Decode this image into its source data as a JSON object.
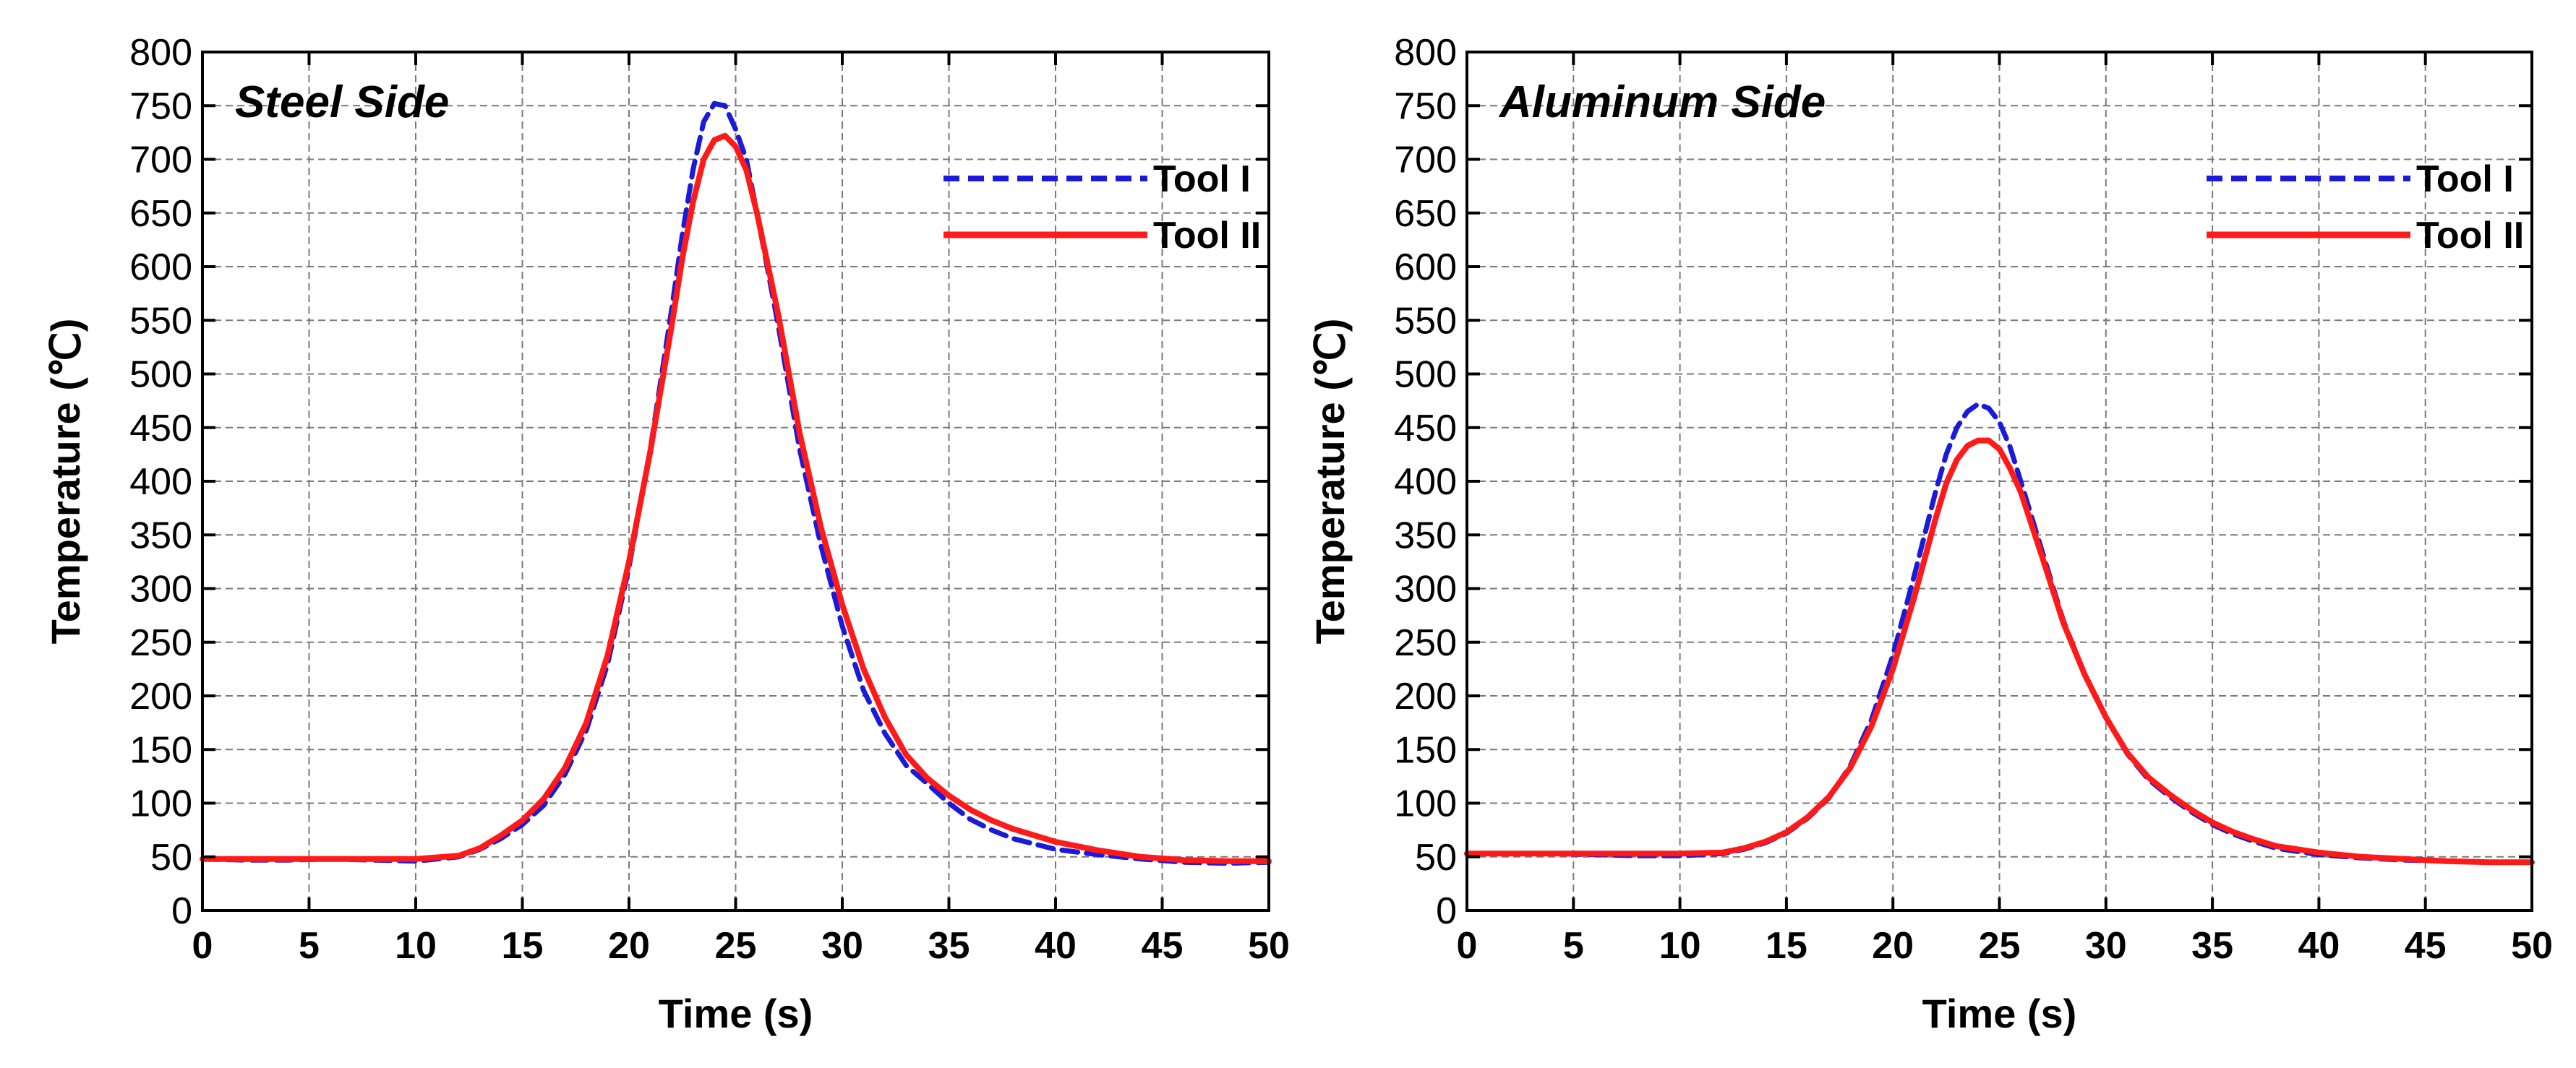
{
  "chart_data": [
    {
      "type": "line",
      "title": "Steel Side",
      "xlabel": "Time (s)",
      "ylabel": "Temperature (℃)",
      "xlim": [
        0,
        50
      ],
      "ylim": [
        0,
        800
      ],
      "xticks": [
        0,
        5,
        10,
        15,
        20,
        25,
        30,
        35,
        40,
        45,
        50
      ],
      "yticks": [
        0,
        50,
        100,
        150,
        200,
        250,
        300,
        350,
        400,
        450,
        500,
        550,
        600,
        650,
        700,
        750,
        800
      ],
      "grid": true,
      "legend_position": "top-right",
      "series": [
        {
          "name": "Tool I",
          "color": "#1a1adb",
          "style": "dashed",
          "x": [
            0,
            2,
            4,
            6,
            8,
            10,
            12,
            13,
            14,
            15,
            16,
            17,
            18,
            19,
            20,
            21,
            22,
            22.5,
            23,
            23.5,
            24,
            24.5,
            25,
            25.5,
            26,
            27,
            28,
            29,
            30,
            31,
            32,
            33,
            34,
            35,
            36,
            37,
            38,
            40,
            42,
            44,
            46,
            48,
            50
          ],
          "y": [
            48,
            47,
            47,
            48,
            47,
            46,
            50,
            57,
            67,
            80,
            98,
            127,
            168,
            230,
            320,
            430,
            560,
            630,
            690,
            735,
            752,
            750,
            728,
            700,
            650,
            545,
            430,
            340,
            265,
            205,
            165,
            135,
            118,
            100,
            85,
            75,
            67,
            57,
            52,
            48,
            45,
            44,
            45
          ]
        },
        {
          "name": "Tool II",
          "color": "#ff1a1a",
          "style": "solid",
          "x": [
            0,
            2,
            4,
            6,
            8,
            10,
            12,
            13,
            14,
            15,
            16,
            17,
            18,
            19,
            20,
            21,
            22,
            22.5,
            23,
            23.5,
            24,
            24.5,
            25,
            25.5,
            26,
            27,
            28,
            29,
            30,
            31,
            32,
            33,
            34,
            35,
            36,
            37,
            38,
            40,
            42,
            44,
            46,
            48,
            50
          ],
          "y": [
            48,
            48,
            48,
            48,
            48,
            48,
            51,
            58,
            70,
            84,
            104,
            133,
            175,
            238,
            325,
            428,
            545,
            608,
            660,
            700,
            718,
            722,
            712,
            690,
            650,
            555,
            445,
            357,
            285,
            225,
            180,
            145,
            123,
            107,
            94,
            84,
            76,
            64,
            56,
            50,
            47,
            46,
            46
          ]
        }
      ]
    },
    {
      "type": "line",
      "title": "Aluminum Side",
      "xlabel": "Time (s)",
      "ylabel": "Temperature (℃)",
      "xlim": [
        0,
        50
      ],
      "ylim": [
        0,
        800
      ],
      "xticks": [
        0,
        5,
        10,
        15,
        20,
        25,
        30,
        35,
        40,
        45,
        50
      ],
      "yticks": [
        0,
        50,
        100,
        150,
        200,
        250,
        300,
        350,
        400,
        450,
        500,
        550,
        600,
        650,
        700,
        750,
        800
      ],
      "grid": true,
      "legend_position": "top-right",
      "series": [
        {
          "name": "Tool I",
          "color": "#1a1adb",
          "style": "dashed",
          "x": [
            0,
            2,
            4,
            6,
            8,
            10,
            12,
            13,
            14,
            15,
            16,
            17,
            18,
            19,
            20,
            21,
            22,
            22.5,
            23,
            23.5,
            24,
            24.5,
            25,
            25.5,
            26,
            27,
            28,
            29,
            30,
            31,
            32,
            33,
            34,
            35,
            36,
            37,
            38,
            40,
            42,
            44,
            46,
            48,
            50
          ],
          "y": [
            53,
            53,
            53,
            52,
            51,
            51,
            53,
            57,
            63,
            72,
            86,
            105,
            135,
            178,
            238,
            312,
            390,
            425,
            450,
            465,
            472,
            468,
            455,
            432,
            400,
            335,
            270,
            220,
            180,
            146,
            122,
            106,
            92,
            80,
            71,
            64,
            58,
            52,
            49,
            47,
            46,
            45,
            45
          ]
        },
        {
          "name": "Tool II",
          "color": "#ff1a1a",
          "style": "solid",
          "x": [
            0,
            2,
            4,
            6,
            8,
            10,
            12,
            13,
            14,
            15,
            16,
            17,
            18,
            19,
            20,
            21,
            22,
            22.5,
            23,
            23.5,
            24,
            24.5,
            25,
            25.5,
            26,
            27,
            28,
            29,
            30,
            31,
            32,
            33,
            34,
            35,
            36,
            37,
            38,
            40,
            42,
            44,
            46,
            48,
            50
          ],
          "y": [
            53,
            53,
            53,
            53,
            53,
            53,
            54,
            58,
            64,
            73,
            87,
            106,
            133,
            172,
            225,
            292,
            365,
            398,
            420,
            433,
            438,
            438,
            430,
            412,
            390,
            330,
            268,
            220,
            180,
            147,
            124,
            108,
            94,
            82,
            73,
            66,
            60,
            54,
            50,
            48,
            46,
            45,
            45
          ]
        }
      ]
    }
  ]
}
